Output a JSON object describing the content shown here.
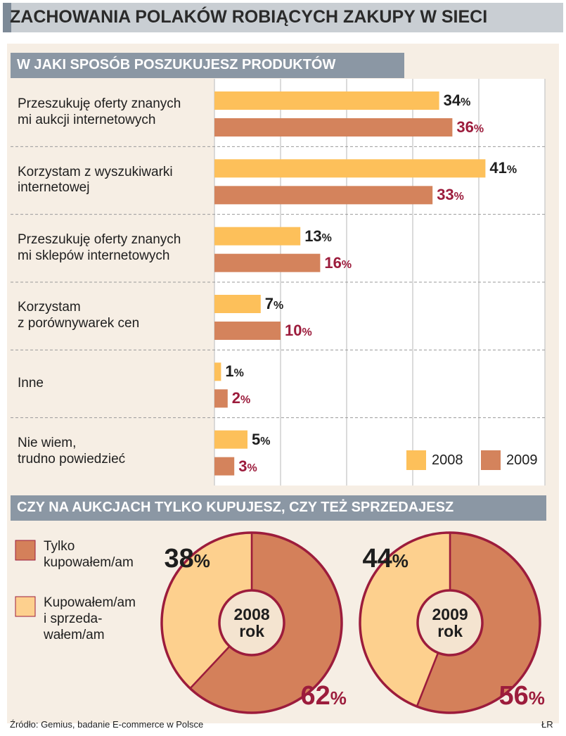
{
  "title": "ZACHOWANIA POLAKÓW ROBIĄCYCH ZAKUPY W SIECI",
  "source": "Źródło: Gemius, badanie E-commerce w Polsce",
  "credit": "ŁR",
  "chart_data": [
    {
      "type": "bar",
      "orientation": "horizontal",
      "title": "W JAKI SPOSÓB POSZUKUJESZ PRODUKTÓW",
      "categories": [
        "Przeszukuję oferty znanych\nmi aukcji internetowych",
        "Korzystam z wyszukiwarki\ninternetowej",
        "Przeszukuję oferty znanych\nmi sklepów internetowych",
        "Korzystam\nz porównywarek cen",
        "Inne",
        "Nie wiem,\ntrudno powiedzieć"
      ],
      "series": [
        {
          "name": "2008",
          "color": "#fdc05a",
          "label_color": "#1e1e1e",
          "values": [
            34,
            41,
            13,
            7,
            1,
            5
          ],
          "value_labels": [
            "34%",
            "41%",
            "13%",
            "7%",
            "1%",
            "5%"
          ]
        },
        {
          "name": "2009",
          "color": "#d4835c",
          "label_color": "#9c1c3c",
          "values": [
            36,
            33,
            16,
            10,
            2,
            3
          ],
          "value_labels": [
            "36%",
            "33%",
            "16%",
            "10%",
            "2%",
            "3%"
          ]
        }
      ],
      "xlim": [
        0,
        50
      ],
      "xticks": [
        0,
        10,
        20,
        30,
        40,
        50
      ],
      "grid": true,
      "legend": "lower right"
    },
    {
      "type": "donut",
      "title": "CZY NA AUKCJACH TYLKO KUPUJESZ, CZY TEŻ SPRZEDAJESZ",
      "categories": [
        "Tylko\nkupowałem/am",
        "Kupowałem/am\ni sprzeda-\nwałem/am"
      ],
      "colors": [
        "#d4805a",
        "#fdd08e"
      ],
      "pies": [
        {
          "label": "2008\nrok",
          "values": [
            62,
            38
          ],
          "value_labels": [
            "62%",
            "38%"
          ]
        },
        {
          "label": "2009\nrok",
          "values": [
            56,
            44
          ],
          "value_labels": [
            "56%",
            "44%"
          ]
        }
      ]
    }
  ]
}
